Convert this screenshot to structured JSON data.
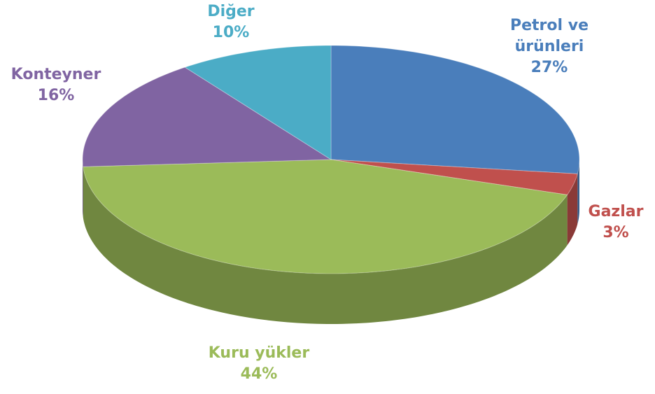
{
  "chart_data": {
    "type": "pie",
    "categories": [
      "Petrol ve ürünleri",
      "Gazlar",
      "Kuru yükler",
      "Konteyner",
      "Diğer"
    ],
    "values": [
      27,
      3,
      44,
      16,
      10
    ],
    "value_labels": [
      "27%",
      "3%",
      "44%",
      "16%",
      "10%"
    ],
    "colors": [
      "#4a7ebb",
      "#c0504d",
      "#9bbb59",
      "#8064a2",
      "#4bacc6"
    ]
  }
}
